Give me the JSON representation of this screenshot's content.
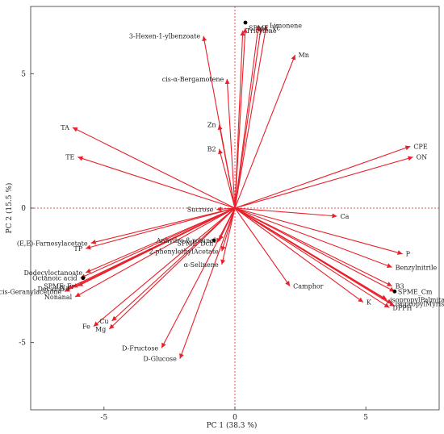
{
  "chart_data": {
    "type": "scatter",
    "subtype": "biplot",
    "title": "",
    "xlabel": "PC 1 (38.3 %)",
    "ylabel": "PC 2 (15.5 %)",
    "xlim": [
      -7.8,
      7.8
    ],
    "ylim": [
      -7.5,
      7.5
    ],
    "x_ticks": [
      -5,
      0,
      5
    ],
    "y_ticks": [
      -5,
      0,
      5
    ],
    "origin_lines": "dashed",
    "grid": false,
    "vector_color": "#e8202a",
    "point_color": "#000000",
    "vectors": [
      {
        "label": "SPME_Vc",
        "x": 0.4,
        "y": 6.7
      },
      {
        "label": "Limonene",
        "x": 1.2,
        "y": 6.8
      },
      {
        "label": "Tricylene",
        "x": 0.3,
        "y": 6.6
      },
      {
        "label": "",
        "x": 0.9,
        "y": 6.8
      },
      {
        "label": "",
        "x": 1.0,
        "y": 6.75
      },
      {
        "label": "3-Hexen-1-ylbenzoate",
        "x": -1.2,
        "y": 6.4
      },
      {
        "label": "Mn",
        "x": 2.3,
        "y": 5.7
      },
      {
        "label": "cis-α-Bergamotene",
        "x": -0.3,
        "y": 4.8
      },
      {
        "label": "Zn",
        "x": -0.6,
        "y": 3.1
      },
      {
        "label": "B2",
        "x": -0.6,
        "y": 2.2
      },
      {
        "label": "TA",
        "x": -6.2,
        "y": 3.0
      },
      {
        "label": "TE",
        "x": -6.0,
        "y": 1.9
      },
      {
        "label": "CPE",
        "x": 6.7,
        "y": 2.3
      },
      {
        "label": "ON",
        "x": 6.8,
        "y": 1.9
      },
      {
        "label": "Sucrose",
        "x": -0.7,
        "y": -0.05
      },
      {
        "label": "Ca",
        "x": 3.9,
        "y": -0.3
      },
      {
        "label": "(E,E)-Farnesylacetate",
        "x": -5.5,
        "y": -1.3
      },
      {
        "label": "TP",
        "x": -5.7,
        "y": -1.5
      },
      {
        "label": "Anhydro-β-rotunol",
        "x": -0.6,
        "y": -1.2
      },
      {
        "label": "SPME_Dch",
        "x": -0.7,
        "y": -1.3
      },
      {
        "label": "2-phenylethylAcetate",
        "x": -0.5,
        "y": -1.6
      },
      {
        "label": "α-Selinene",
        "x": -0.5,
        "y": -2.1
      },
      {
        "label": "P",
        "x": 6.4,
        "y": -1.7
      },
      {
        "label": "Benzylnitrile",
        "x": 6.0,
        "y": -2.2
      },
      {
        "label": "Camphor",
        "x": 2.1,
        "y": -2.9
      },
      {
        "label": "Dodecyloctanoate",
        "x": -5.7,
        "y": -2.4
      },
      {
        "label": "Octanoic acid",
        "x": -5.9,
        "y": -2.6
      },
      {
        "label": "Na",
        "x": -6.2,
        "y": -2.95
      },
      {
        "label": "SPME_Fr",
        "x": -6.0,
        "y": -2.9
      },
      {
        "label": "Decanal",
        "x": -6.4,
        "y": -3.0
      },
      {
        "label": "cis-Geranylacetone",
        "x": -6.5,
        "y": -3.1
      },
      {
        "label": "Nonanal",
        "x": -6.1,
        "y": -3.3
      },
      {
        "label": "B3",
        "x": 6.0,
        "y": -2.9
      },
      {
        "label": "SPME_Cm",
        "x": 6.1,
        "y": -3.1
      },
      {
        "label": "K",
        "x": 4.9,
        "y": -3.5
      },
      {
        "label": "isopropylPalmitate",
        "x": 5.8,
        "y": -3.4
      },
      {
        "label": "DPPH",
        "x": 5.9,
        "y": -3.7
      },
      {
        "label": "isopropylMyristate",
        "x": 6.0,
        "y": -3.55
      },
      {
        "label": "",
        "x": 6.1,
        "y": -3.65
      },
      {
        "label": "Fe",
        "x": -5.4,
        "y": -4.4
      },
      {
        "label": "Cu",
        "x": -4.7,
        "y": -4.2
      },
      {
        "label": "Mg",
        "x": -4.8,
        "y": -4.5
      },
      {
        "label": "D-Fructose",
        "x": -2.8,
        "y": -5.2
      },
      {
        "label": "D-Glucose",
        "x": -2.1,
        "y": -5.6
      }
    ],
    "points": [
      {
        "x": 0.4,
        "y": 6.9
      },
      {
        "x": -0.8,
        "y": -1.2
      },
      {
        "x": -5.8,
        "y": -2.6
      },
      {
        "x": 6.1,
        "y": -3.1
      }
    ]
  }
}
